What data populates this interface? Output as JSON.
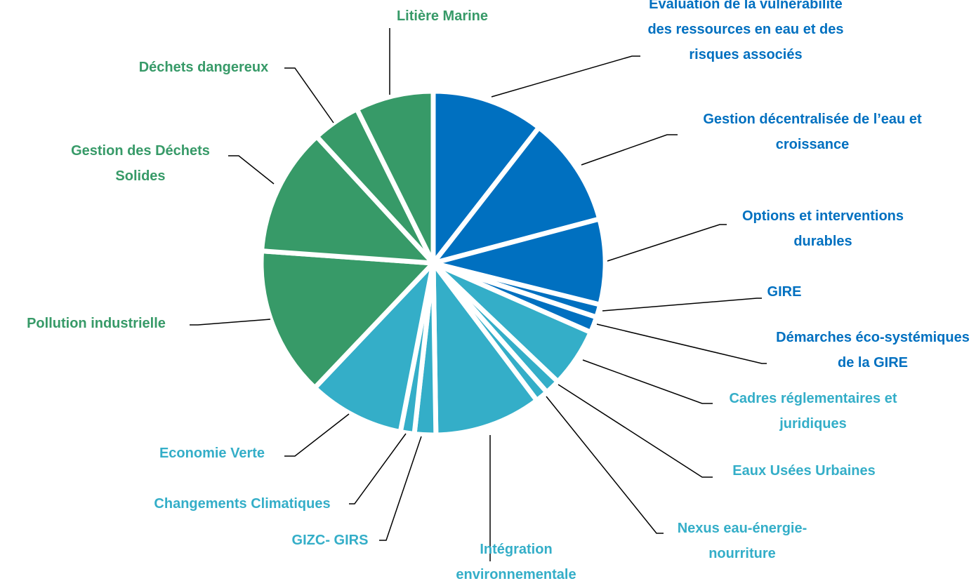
{
  "chart_data": {
    "type": "pie",
    "categories": [
      "Evaluation de la vulnérabilité des ressources en eau et des risques associés",
      "Gestion décentralisée de l’eau et croissance",
      "Options et interventions durables",
      "GIRE",
      "Démarches éco-systémiques de la GIRE",
      "Cadres réglementaires et juridiques",
      "Eaux Usées Urbaines",
      "Nexus eau-énergie-nourriture",
      "Intégration environnementale",
      "GIZC- GIRS",
      "Changements Climatiques",
      "Economie Verte",
      "Pollution industrielle",
      "Gestion des Déchets Solides",
      "Déchets dangereux",
      "Litière Marine"
    ],
    "values": [
      10.5,
      10.3,
      8,
      1.2,
      1.5,
      5.5,
      1.4,
      1.2,
      10,
      2,
      1.3,
      9,
      14,
      12,
      4.5,
      7.3
    ],
    "colors": [
      "#0070c0",
      "#0070c0",
      "#0070c0",
      "#0070c0",
      "#0070c0",
      "#34aec8",
      "#34aec8",
      "#34aec8",
      "#34aec8",
      "#34aec8",
      "#34aec8",
      "#34aec8",
      "#379a68",
      "#379a68",
      "#379a68",
      "#379a68"
    ]
  }
}
